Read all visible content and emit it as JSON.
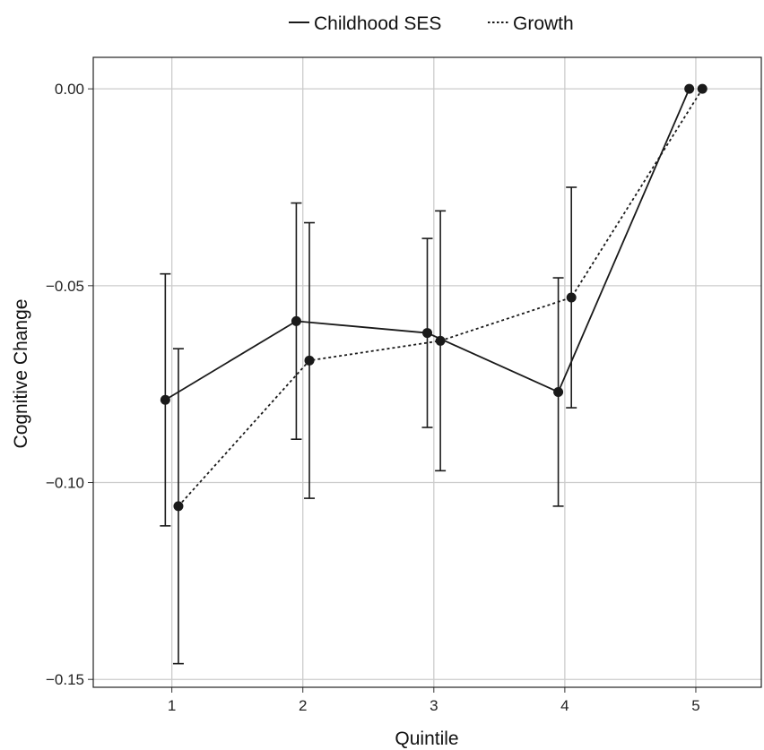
{
  "chart_data": {
    "type": "line",
    "xlabel": "Quintile",
    "ylabel": "Cognitive Change",
    "categories": [
      "1",
      "2",
      "3",
      "4",
      "5"
    ],
    "x_ticks": [
      "1",
      "2",
      "3",
      "4",
      "5"
    ],
    "y_ticks": [
      "0.00",
      "-0.05",
      "-0.10",
      "-0.15"
    ],
    "ylim": [
      -0.152,
      0.008
    ],
    "xlim": [
      0.4,
      5.5
    ],
    "grid": true,
    "legend_position": "top",
    "series": [
      {
        "name": "Childhood SES",
        "line_style": "solid",
        "color": "#1a1a1a",
        "x": [
          1,
          2,
          3,
          4,
          5
        ],
        "values": [
          -0.079,
          -0.059,
          -0.062,
          -0.077,
          0.0
        ],
        "lower": [
          -0.111,
          -0.089,
          -0.086,
          -0.106,
          null
        ],
        "upper": [
          -0.047,
          -0.029,
          -0.038,
          -0.048,
          null
        ]
      },
      {
        "name": "Growth",
        "line_style": "dotted",
        "color": "#1a1a1a",
        "x": [
          1,
          2,
          3,
          4,
          5
        ],
        "values": [
          -0.106,
          -0.069,
          -0.064,
          -0.053,
          0.0
        ],
        "lower": [
          -0.146,
          -0.104,
          -0.097,
          -0.081,
          null
        ],
        "upper": [
          -0.066,
          -0.034,
          -0.031,
          -0.025,
          null
        ]
      }
    ]
  }
}
